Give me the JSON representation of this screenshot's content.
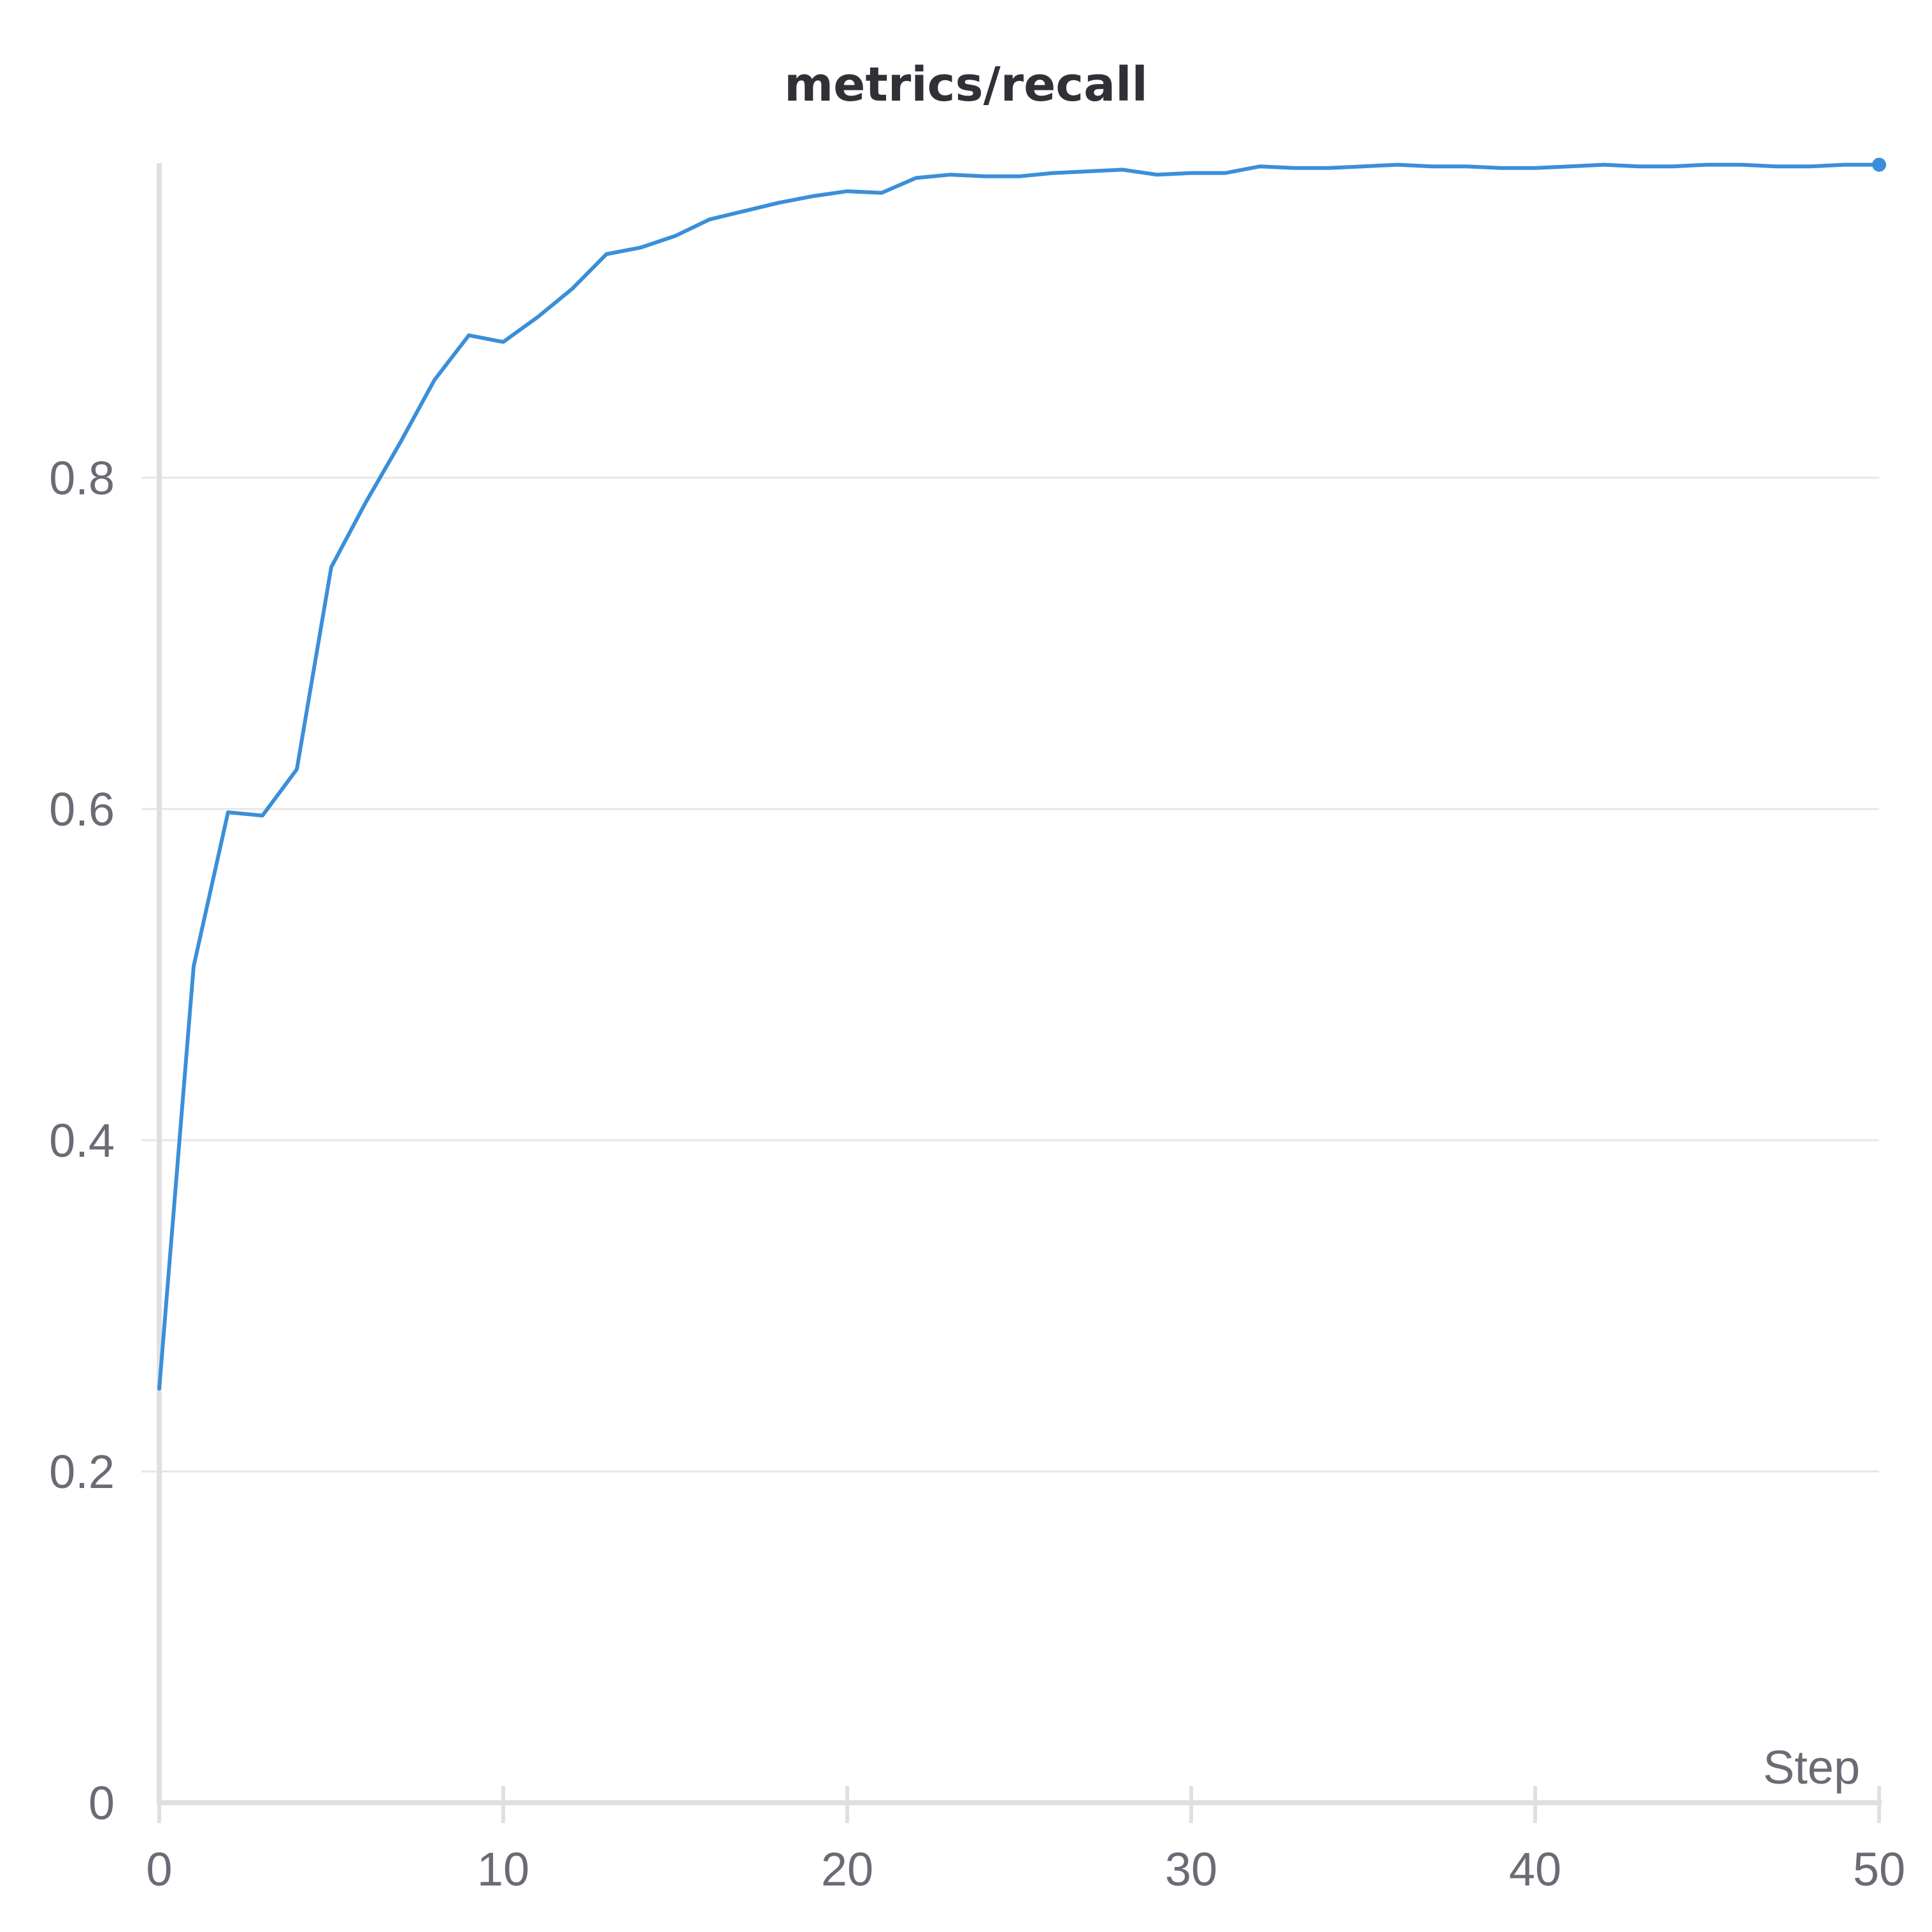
{
  "chart_data": {
    "type": "line",
    "title": "metrics/recall",
    "xlabel": "Step",
    "ylabel": "",
    "xlim": [
      0,
      50
    ],
    "ylim": [
      0,
      0.99
    ],
    "x_ticks": [
      0,
      10,
      20,
      30,
      40,
      50
    ],
    "x_tick_labels": [
      "0",
      "10",
      "20",
      "30",
      "40",
      "50"
    ],
    "y_ticks": [
      0,
      0.2,
      0.4,
      0.6,
      0.8
    ],
    "y_tick_labels": [
      "0",
      "0.2",
      "0.4",
      "0.6",
      "0.8"
    ],
    "grid": "horizontal",
    "legend": "none",
    "line_color": "#3a8fd9",
    "series": [
      {
        "x": [
          0,
          1,
          2,
          3,
          4,
          5,
          6,
          7,
          8,
          9,
          10,
          11,
          12,
          13,
          14,
          15,
          16,
          17,
          18,
          19,
          20,
          21,
          22,
          23,
          24,
          25,
          26,
          27,
          28,
          29,
          30,
          31,
          32,
          33,
          34,
          35,
          36,
          37,
          38,
          39,
          40,
          41,
          42,
          43,
          44,
          45,
          46,
          47,
          48,
          49,
          50
        ],
        "values": [
          0.25,
          0.505,
          0.598,
          0.596,
          0.624,
          0.746,
          0.785,
          0.821,
          0.859,
          0.886,
          0.882,
          0.897,
          0.914,
          0.935,
          0.939,
          0.946,
          0.956,
          0.961,
          0.966,
          0.97,
          0.973,
          0.972,
          0.981,
          0.983,
          0.982,
          0.982,
          0.984,
          0.985,
          0.986,
          0.983,
          0.984,
          0.984,
          0.988,
          0.987,
          0.987,
          0.988,
          0.989,
          0.988,
          0.988,
          0.987,
          0.987,
          0.988,
          0.989,
          0.988,
          0.988,
          0.989,
          0.989,
          0.988,
          0.988,
          0.989,
          0.989
        ]
      }
    ]
  }
}
